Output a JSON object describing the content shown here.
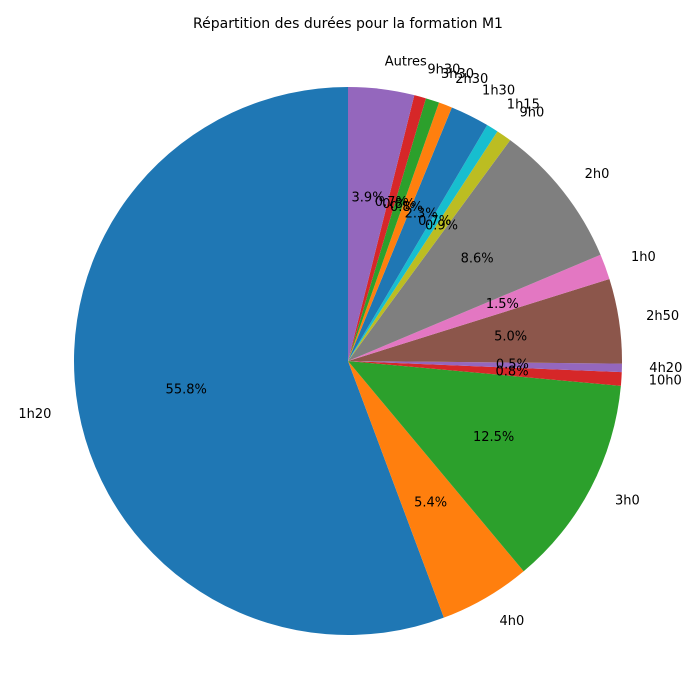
{
  "chart_data": {
    "type": "pie",
    "title": "Répartition des durées pour la formation M1",
    "start_angle_deg": 90,
    "direction": "counterclockwise",
    "slices": [
      {
        "label": "1h20",
        "value": 55.8,
        "pct_label": "55.8%",
        "color": "#1f77b4"
      },
      {
        "label": "4h0",
        "value": 5.4,
        "pct_label": "5.4%",
        "color": "#ff7f0e"
      },
      {
        "label": "3h0",
        "value": 12.5,
        "pct_label": "12.5%",
        "color": "#2ca02c"
      },
      {
        "label": "10h0",
        "value": 0.8,
        "pct_label": "0.8%",
        "color": "#d62728"
      },
      {
        "label": "4h20",
        "value": 0.5,
        "pct_label": "0.5%",
        "color": "#9467bd"
      },
      {
        "label": "2h50",
        "value": 5.0,
        "pct_label": "5.0%",
        "color": "#8c564b"
      },
      {
        "label": "1h0",
        "value": 1.5,
        "pct_label": "1.5%",
        "color": "#e377c2"
      },
      {
        "label": "2h0",
        "value": 8.6,
        "pct_label": "8.6%",
        "color": "#7f7f7f"
      },
      {
        "label": "9h0",
        "value": 0.9,
        "pct_label": "0.9%",
        "color": "#bcbd22"
      },
      {
        "label": "1h15",
        "value": 0.7,
        "pct_label": "0.7%",
        "color": "#17becf"
      },
      {
        "label": "1h30",
        "value": 2.3,
        "pct_label": "2.3%",
        "color": "#1f77b4"
      },
      {
        "label": "2h30",
        "value": 0.8,
        "pct_label": "0.8%",
        "color": "#ff7f0e"
      },
      {
        "label": "3h30",
        "value": 0.8,
        "pct_label": "0.8%",
        "color": "#2ca02c"
      },
      {
        "label": "9h30",
        "value": 0.7,
        "pct_label": "0.7%",
        "color": "#d62728"
      },
      {
        "label": "Autres",
        "value": 3.9,
        "pct_label": "3.9%",
        "color": "#9467bd"
      }
    ]
  }
}
